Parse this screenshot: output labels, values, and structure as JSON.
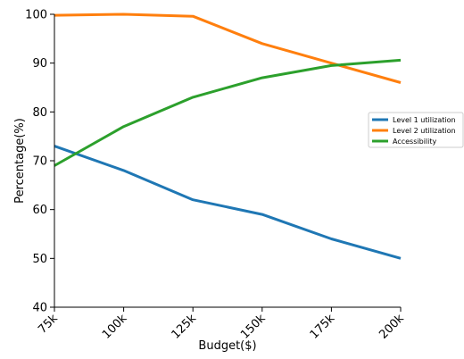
{
  "chart_data": {
    "type": "line",
    "xlabel": "Budget($)",
    "ylabel": "Percentage(%)",
    "categories": [
      "75k",
      "100k",
      "125k",
      "150k",
      "175k",
      "200k"
    ],
    "ylim": [
      40,
      100
    ],
    "yticks": [
      40,
      50,
      60,
      70,
      80,
      90,
      100
    ],
    "grid": false,
    "legend_position": "right",
    "series": [
      {
        "name": "Level 1 utilization",
        "color": "#1f77b4",
        "values": [
          73,
          68,
          62,
          59,
          54,
          50
        ]
      },
      {
        "name": "Level 2 utilization",
        "color": "#ff7f0e",
        "values": [
          99.8,
          100,
          99.6,
          94,
          90,
          86
        ]
      },
      {
        "name": "Accessibility",
        "color": "#2ca02c",
        "values": [
          69,
          77,
          83,
          87,
          89.5,
          90.6
        ]
      }
    ]
  }
}
